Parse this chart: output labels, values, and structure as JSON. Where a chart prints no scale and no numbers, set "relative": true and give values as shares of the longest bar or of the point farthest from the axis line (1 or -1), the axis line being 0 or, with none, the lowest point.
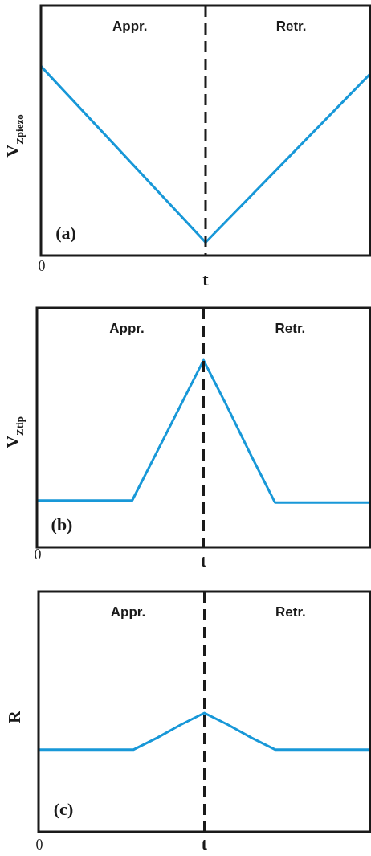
{
  "chart_data": [
    {
      "type": "line",
      "ylabel": "V$_{Zpiezo}$",
      "xlabel": "t",
      "categories": [
        null,
        null,
        null
      ],
      "values": [
        1,
        0.07,
        0.96
      ],
      "color": "#1898d8",
      "relative": true,
      "tick_labels": false,
      "marker": "none",
      "annotations": [
        "Appr.",
        "Retr.",
        "(a)",
        "0"
      ]
    },
    {
      "type": "line",
      "ylabel": "V$_{Ztip}$",
      "xlabel": "t",
      "categories": [
        null,
        null,
        null,
        null,
        null,
        null,
        null,
        null,
        null,
        null,
        null,
        null,
        null,
        null,
        null
      ],
      "values": [
        0.25,
        0.25,
        0.25,
        0.25,
        0.25,
        0.5,
        0.75,
        1,
        0.75,
        0.49,
        0.24,
        0.24,
        0.24,
        0.24,
        0.24
      ],
      "color": "#1898d8",
      "relative": true,
      "tick_labels": false,
      "marker": "none",
      "annotations": [
        "Appr.",
        "Retr.",
        "(b)",
        "0"
      ]
    },
    {
      "type": "line",
      "ylabel": "R",
      "xlabel": "t",
      "categories": [
        null,
        null,
        null,
        null,
        null,
        null,
        null,
        null,
        null,
        null,
        null,
        null,
        null,
        null,
        null
      ],
      "values": [
        0.69,
        0.69,
        0.69,
        0.69,
        0.69,
        0.79,
        0.9,
        1,
        0.9,
        0.79,
        0.69,
        0.69,
        0.69,
        0.69,
        0.69
      ],
      "color": "#1898d8",
      "relative": true,
      "tick_labels": false,
      "marker": "none",
      "annotations": [
        "Appr.",
        "Retr.",
        "(c)",
        "0"
      ]
    }
  ]
}
